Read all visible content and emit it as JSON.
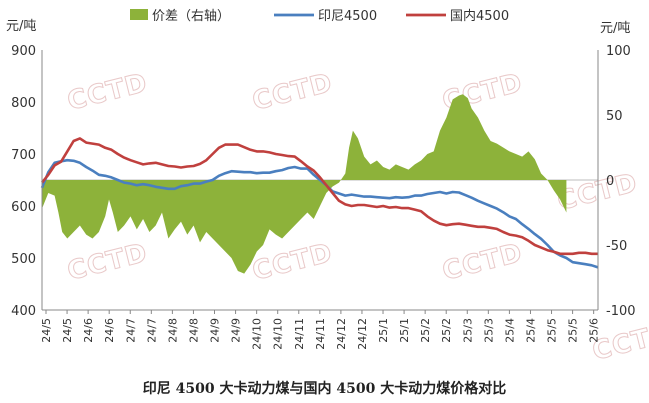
{
  "chart_data": {
    "type": "line+area",
    "title": "印尼 4500 大卡动力煤与国内 4500 大卡动力煤价格对比",
    "left_unit": "元/吨",
    "right_unit": "元/吨",
    "left_axis": {
      "min": 400,
      "max": 900,
      "ticks": [
        400,
        500,
        600,
        700,
        800,
        900
      ]
    },
    "right_axis": {
      "min": -100,
      "max": 100,
      "ticks": [
        -100,
        -50,
        0,
        50,
        100
      ]
    },
    "x_ticks": [
      "24/5",
      "24/5",
      "24/6",
      "24/6",
      "24/7",
      "24/7",
      "24/8",
      "24/8",
      "24/9",
      "24/9",
      "24/10",
      "24/10",
      "24/11",
      "24/11",
      "24/12",
      "24/12",
      "25/1",
      "25/1",
      "25/2",
      "25/2",
      "25/3",
      "25/3",
      "25/4",
      "25/4",
      "25/5",
      "25/5",
      "25/6"
    ],
    "legend_position": "top",
    "series": [
      {
        "name": "价差（右轴）",
        "axis": "right",
        "kind": "area",
        "color": "#8db23a",
        "points": [
          [
            0,
            -22
          ],
          [
            0.5,
            -10
          ],
          [
            1,
            -12
          ],
          [
            1.3,
            -25
          ],
          [
            1.6,
            -40
          ],
          [
            2,
            -45
          ],
          [
            2.5,
            -40
          ],
          [
            3,
            -35
          ],
          [
            3.5,
            -42
          ],
          [
            4,
            -45
          ],
          [
            4.5,
            -40
          ],
          [
            5,
            -28
          ],
          [
            5.3,
            -15
          ],
          [
            5.6,
            -25
          ],
          [
            6,
            -40
          ],
          [
            6.5,
            -35
          ],
          [
            7,
            -28
          ],
          [
            7.5,
            -38
          ],
          [
            8,
            -30
          ],
          [
            8.5,
            -40
          ],
          [
            9,
            -35
          ],
          [
            9.5,
            -25
          ],
          [
            10,
            -45
          ],
          [
            10.5,
            -38
          ],
          [
            11,
            -32
          ],
          [
            11.5,
            -42
          ],
          [
            12,
            -35
          ],
          [
            12.5,
            -48
          ],
          [
            13,
            -40
          ],
          [
            13.5,
            -45
          ],
          [
            14,
            -50
          ],
          [
            14.5,
            -55
          ],
          [
            15,
            -60
          ],
          [
            15.5,
            -70
          ],
          [
            16,
            -72
          ],
          [
            16.5,
            -65
          ],
          [
            17,
            -55
          ],
          [
            17.5,
            -50
          ],
          [
            18,
            -38
          ],
          [
            18.5,
            -42
          ],
          [
            19,
            -45
          ],
          [
            19.5,
            -40
          ],
          [
            20,
            -35
          ],
          [
            20.5,
            -30
          ],
          [
            21,
            -25
          ],
          [
            21.5,
            -30
          ],
          [
            22,
            -20
          ],
          [
            22.5,
            -10
          ],
          [
            23,
            -5
          ],
          [
            23.5,
            -2
          ],
          [
            24,
            5
          ],
          [
            24.3,
            25
          ],
          [
            24.6,
            38
          ],
          [
            25,
            32
          ],
          [
            25.5,
            18
          ],
          [
            26,
            12
          ],
          [
            26.5,
            15
          ],
          [
            27,
            10
          ],
          [
            27.5,
            8
          ],
          [
            28,
            12
          ],
          [
            28.5,
            10
          ],
          [
            29,
            8
          ],
          [
            29.5,
            12
          ],
          [
            30,
            15
          ],
          [
            30.5,
            20
          ],
          [
            31,
            22
          ],
          [
            31.5,
            38
          ],
          [
            32,
            48
          ],
          [
            32.5,
            62
          ],
          [
            33,
            65
          ],
          [
            33.3,
            66
          ],
          [
            33.7,
            63
          ],
          [
            34,
            55
          ],
          [
            34.5,
            48
          ],
          [
            35,
            38
          ],
          [
            35.5,
            30
          ],
          [
            36,
            28
          ],
          [
            36.5,
            25
          ],
          [
            37,
            22
          ],
          [
            37.5,
            20
          ],
          [
            38,
            18
          ],
          [
            38.5,
            22
          ],
          [
            39,
            16
          ],
          [
            39.5,
            5
          ],
          [
            40,
            0
          ],
          [
            40.5,
            -8
          ],
          [
            41,
            -15
          ],
          [
            41.5,
            -25
          ]
        ]
      },
      {
        "name": "印尼4500",
        "axis": "left",
        "kind": "line",
        "color": "#4a7fbf",
        "points": [
          [
            0,
            635
          ],
          [
            0.5,
            665
          ],
          [
            1,
            683
          ],
          [
            1.5,
            686
          ],
          [
            2,
            688
          ],
          [
            2.5,
            687
          ],
          [
            3,
            683
          ],
          [
            3.5,
            675
          ],
          [
            4,
            668
          ],
          [
            4.5,
            660
          ],
          [
            5,
            658
          ],
          [
            5.5,
            655
          ],
          [
            6,
            650
          ],
          [
            6.5,
            645
          ],
          [
            7,
            643
          ],
          [
            7.5,
            640
          ],
          [
            8,
            642
          ],
          [
            8.5,
            640
          ],
          [
            9,
            637
          ],
          [
            9.5,
            635
          ],
          [
            10,
            633
          ],
          [
            10.5,
            633
          ],
          [
            11,
            638
          ],
          [
            11.5,
            640
          ],
          [
            12,
            643
          ],
          [
            12.5,
            643
          ],
          [
            13,
            647
          ],
          [
            13.5,
            650
          ],
          [
            14,
            658
          ],
          [
            14.5,
            663
          ],
          [
            15,
            667
          ],
          [
            15.5,
            666
          ],
          [
            16,
            665
          ],
          [
            16.5,
            665
          ],
          [
            17,
            663
          ],
          [
            17.5,
            664
          ],
          [
            18,
            664
          ],
          [
            18.5,
            667
          ],
          [
            19,
            669
          ],
          [
            19.5,
            673
          ],
          [
            20,
            675
          ],
          [
            20.5,
            672
          ],
          [
            21,
            672
          ],
          [
            21.5,
            660
          ],
          [
            22,
            650
          ],
          [
            22.5,
            640
          ],
          [
            23,
            628
          ],
          [
            23.5,
            624
          ],
          [
            24,
            620
          ],
          [
            24.5,
            622
          ],
          [
            25,
            620
          ],
          [
            25.5,
            618
          ],
          [
            26,
            618
          ],
          [
            26.5,
            617
          ],
          [
            27,
            616
          ],
          [
            27.5,
            615
          ],
          [
            28,
            617
          ],
          [
            28.5,
            616
          ],
          [
            29,
            617
          ],
          [
            29.5,
            620
          ],
          [
            30,
            620
          ],
          [
            30.5,
            623
          ],
          [
            31,
            625
          ],
          [
            31.5,
            627
          ],
          [
            32,
            624
          ],
          [
            32.5,
            627
          ],
          [
            33,
            626
          ],
          [
            33.5,
            621
          ],
          [
            34,
            616
          ],
          [
            34.5,
            610
          ],
          [
            35,
            605
          ],
          [
            35.5,
            600
          ],
          [
            36,
            595
          ],
          [
            36.5,
            588
          ],
          [
            37,
            580
          ],
          [
            37.5,
            575
          ],
          [
            38,
            565
          ],
          [
            38.5,
            556
          ],
          [
            39,
            546
          ],
          [
            39.5,
            537
          ],
          [
            40,
            525
          ],
          [
            40.5,
            512
          ],
          [
            41,
            505
          ],
          [
            41.5,
            500
          ],
          [
            42,
            492
          ],
          [
            42.5,
            490
          ],
          [
            43,
            488
          ],
          [
            43.5,
            486
          ],
          [
            44,
            482
          ]
        ]
      },
      {
        "name": "国内4500",
        "axis": "left",
        "kind": "line",
        "color": "#c0403e",
        "points": [
          [
            0,
            645
          ],
          [
            0.5,
            660
          ],
          [
            1,
            678
          ],
          [
            1.5,
            685
          ],
          [
            2,
            705
          ],
          [
            2.5,
            725
          ],
          [
            3,
            730
          ],
          [
            3.5,
            722
          ],
          [
            4,
            720
          ],
          [
            4.5,
            718
          ],
          [
            5,
            712
          ],
          [
            5.5,
            708
          ],
          [
            6,
            700
          ],
          [
            6.5,
            693
          ],
          [
            7,
            688
          ],
          [
            7.5,
            684
          ],
          [
            8,
            680
          ],
          [
            8.5,
            682
          ],
          [
            9,
            683
          ],
          [
            9.5,
            680
          ],
          [
            10,
            677
          ],
          [
            10.5,
            676
          ],
          [
            11,
            674
          ],
          [
            11.5,
            676
          ],
          [
            12,
            677
          ],
          [
            12.5,
            681
          ],
          [
            13,
            688
          ],
          [
            13.5,
            700
          ],
          [
            14,
            712
          ],
          [
            14.5,
            718
          ],
          [
            15,
            718
          ],
          [
            15.5,
            718
          ],
          [
            16,
            713
          ],
          [
            16.5,
            708
          ],
          [
            17,
            705
          ],
          [
            17.5,
            705
          ],
          [
            18,
            703
          ],
          [
            18.5,
            700
          ],
          [
            19,
            698
          ],
          [
            19.5,
            696
          ],
          [
            20,
            695
          ],
          [
            20.5,
            686
          ],
          [
            21,
            676
          ],
          [
            21.5,
            668
          ],
          [
            22,
            655
          ],
          [
            22.5,
            640
          ],
          [
            23,
            625
          ],
          [
            23.5,
            610
          ],
          [
            24,
            603
          ],
          [
            24.5,
            600
          ],
          [
            25,
            602
          ],
          [
            25.5,
            602
          ],
          [
            26,
            600
          ],
          [
            26.5,
            598
          ],
          [
            27,
            600
          ],
          [
            27.5,
            597
          ],
          [
            28,
            598
          ],
          [
            28.5,
            596
          ],
          [
            29,
            596
          ],
          [
            29.5,
            593
          ],
          [
            30,
            590
          ],
          [
            30.5,
            580
          ],
          [
            31,
            572
          ],
          [
            31.5,
            566
          ],
          [
            32,
            563
          ],
          [
            32.5,
            565
          ],
          [
            33,
            566
          ],
          [
            33.5,
            564
          ],
          [
            34,
            562
          ],
          [
            34.5,
            560
          ],
          [
            35,
            560
          ],
          [
            35.5,
            558
          ],
          [
            36,
            556
          ],
          [
            36.5,
            550
          ],
          [
            37,
            545
          ],
          [
            37.5,
            543
          ],
          [
            38,
            540
          ],
          [
            38.5,
            533
          ],
          [
            39,
            525
          ],
          [
            39.5,
            520
          ],
          [
            40,
            515
          ],
          [
            40.5,
            512
          ],
          [
            41,
            508
          ],
          [
            41.5,
            508
          ],
          [
            42,
            508
          ],
          [
            42.5,
            510
          ],
          [
            43,
            510
          ],
          [
            43.5,
            508
          ],
          [
            44,
            508
          ]
        ]
      }
    ]
  }
}
